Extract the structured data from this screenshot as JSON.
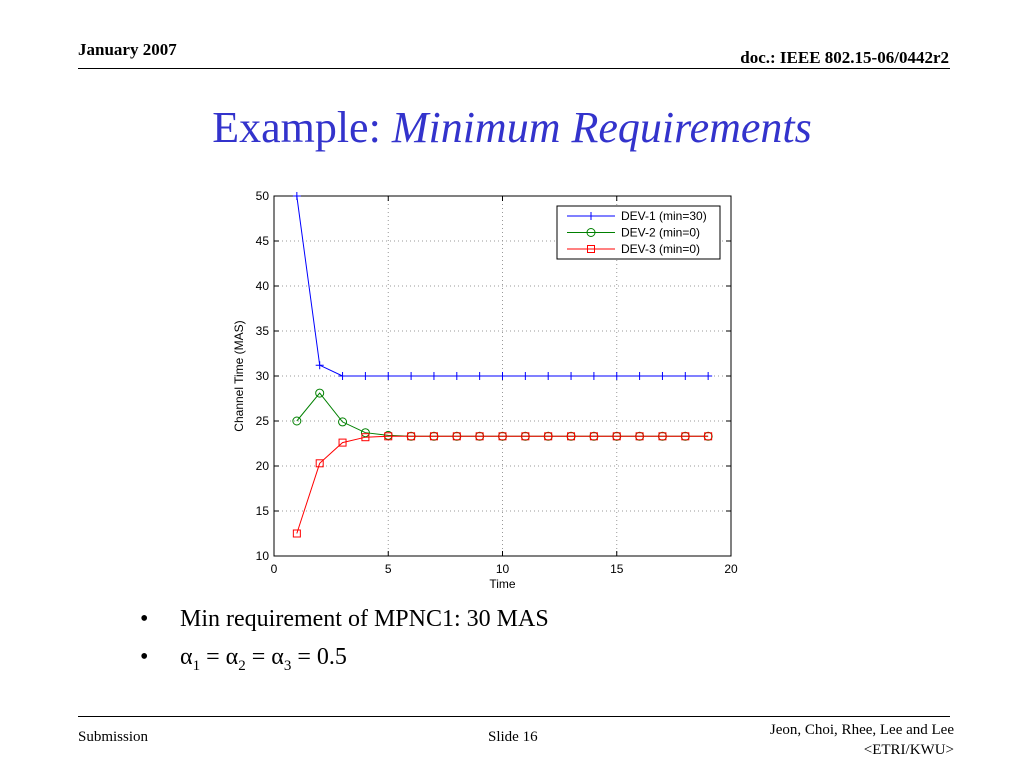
{
  "header": {
    "date": "January 2007",
    "doc": "doc.: IEEE 802.15-06/0442r2"
  },
  "title": {
    "plain": "Example: ",
    "italic": "Minimum Requirements"
  },
  "bullets": [
    {
      "marker": "•",
      "text": "Min requirement of MPNC1: 30 MAS"
    },
    {
      "marker": "•",
      "alpha": "α",
      "subs": [
        "1",
        "2",
        "3"
      ],
      "eq": "=",
      "value": "0.5"
    }
  ],
  "footer": {
    "left": "Submission",
    "center": "Slide 16",
    "right_line1": "Jeon, Choi, Rhee, Lee and Lee",
    "right_line2": "<ETRI/KWU>"
  },
  "chart_data": {
    "type": "line",
    "xlabel": "Time",
    "ylabel": "Channel Time (MAS)",
    "xlim": [
      0,
      20
    ],
    "ylim": [
      10,
      50
    ],
    "xticks": [
      0,
      5,
      10,
      15,
      20
    ],
    "yticks": [
      10,
      15,
      20,
      25,
      30,
      35,
      40,
      45,
      50
    ],
    "grid": "dotted",
    "legend_position": "top-right",
    "x": [
      1,
      2,
      3,
      4,
      5,
      6,
      7,
      8,
      9,
      10,
      11,
      12,
      13,
      14,
      15,
      16,
      17,
      18,
      19
    ],
    "series": [
      {
        "name": "DEV-1 (min=30)",
        "color": "#0000ff",
        "marker": "plus",
        "values": [
          50,
          31.2,
          30,
          30,
          30,
          30,
          30,
          30,
          30,
          30,
          30,
          30,
          30,
          30,
          30,
          30,
          30,
          30,
          30
        ]
      },
      {
        "name": "DEV-2 (min=0)",
        "color": "#008000",
        "marker": "circle",
        "values": [
          25,
          28.1,
          24.9,
          23.7,
          23.4,
          23.3,
          23.3,
          23.3,
          23.3,
          23.3,
          23.3,
          23.3,
          23.3,
          23.3,
          23.3,
          23.3,
          23.3,
          23.3,
          23.3
        ]
      },
      {
        "name": "DEV-3 (min=0)",
        "color": "#ff0000",
        "marker": "square",
        "values": [
          12.5,
          20.3,
          22.6,
          23.2,
          23.3,
          23.3,
          23.3,
          23.3,
          23.3,
          23.3,
          23.3,
          23.3,
          23.3,
          23.3,
          23.3,
          23.3,
          23.3,
          23.3,
          23.3
        ]
      }
    ]
  }
}
